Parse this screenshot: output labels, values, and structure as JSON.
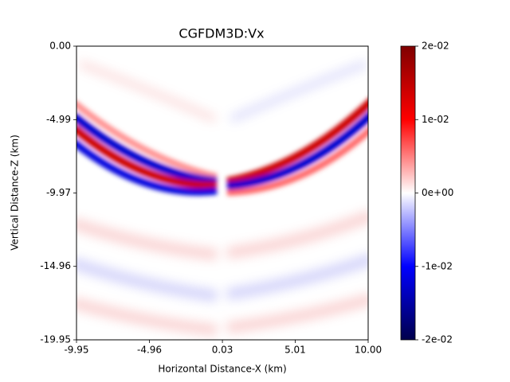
{
  "chart_data": {
    "type": "heatmap",
    "title": "CGFDM3D:Vx",
    "x_label": "Horizontal Distance-X (km)",
    "y_label": "Vertical Distance-Z (km)",
    "xlim": [
      -9.95,
      10
    ],
    "xticks": [
      -9.95,
      -4.96,
      0.03,
      5.01,
      {
        "value": 10,
        "label": "10.00"
      }
    ],
    "ylim": [
      -19.95,
      0
    ],
    "yticks": [
      {
        "value": 0,
        "label": "0.00"
      },
      -4.99,
      -9.97,
      -14.96,
      -19.95
    ],
    "colormap": [
      "#00004c",
      "#0000ff",
      "#ffffff",
      "#ff0000",
      "#7f0000"
    ],
    "clim": [
      -0.02,
      0.02
    ],
    "cticks": [
      {
        "value": 0.02,
        "label": "2e-02"
      },
      {
        "value": 0.01,
        "label": "1e-02"
      },
      {
        "value": 0,
        "label": "0e+00"
      },
      {
        "value": -0.01,
        "label": "-1e-02"
      },
      {
        "value": -0.02,
        "label": "-2e-02"
      }
    ]
  }
}
